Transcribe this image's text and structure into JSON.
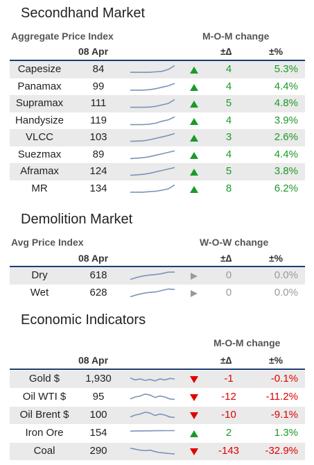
{
  "colors": {
    "up": "#1a9a2a",
    "down": "#e00000",
    "neutral": "#9a9a9a",
    "rule": "#1f3b70",
    "spark": "#7a94b8"
  },
  "secondhand": {
    "title": "Secondhand Market",
    "index_label": "Aggregate Price Index",
    "change_label": "M-O-M change",
    "date": "08 Apr",
    "delta_label": "±∆",
    "pct_label": "±%",
    "rows": [
      {
        "name": "Capesize",
        "value": "84",
        "dir": "up",
        "delta": "4",
        "pct": "5.3%",
        "spark": [
          0.2,
          0.2,
          0.2,
          0.2,
          0.25,
          0.3,
          0.5,
          0.9
        ]
      },
      {
        "name": "Panamax",
        "value": "99",
        "dir": "up",
        "delta": "4",
        "pct": "4.4%",
        "spark": [
          0.15,
          0.15,
          0.15,
          0.2,
          0.3,
          0.45,
          0.6,
          0.85
        ]
      },
      {
        "name": "Supramax",
        "value": "111",
        "dir": "up",
        "delta": "5",
        "pct": "4.8%",
        "spark": [
          0.1,
          0.1,
          0.1,
          0.12,
          0.2,
          0.35,
          0.5,
          0.9
        ]
      },
      {
        "name": "Handysize",
        "value": "119",
        "dir": "up",
        "delta": "4",
        "pct": "3.9%",
        "spark": [
          0.1,
          0.1,
          0.1,
          0.15,
          0.25,
          0.45,
          0.6,
          0.9
        ]
      },
      {
        "name": "VLCC",
        "value": "103",
        "dir": "up",
        "delta": "3",
        "pct": "2.6%",
        "spark": [
          0.1,
          0.12,
          0.15,
          0.25,
          0.4,
          0.55,
          0.7,
          0.9
        ]
      },
      {
        "name": "Suezmax",
        "value": "89",
        "dir": "up",
        "delta": "4",
        "pct": "4.4%",
        "spark": [
          0.1,
          0.15,
          0.2,
          0.3,
          0.45,
          0.6,
          0.75,
          0.9
        ]
      },
      {
        "name": "Aframax",
        "value": "124",
        "dir": "up",
        "delta": "5",
        "pct": "3.8%",
        "spark": [
          0.1,
          0.15,
          0.2,
          0.3,
          0.45,
          0.6,
          0.75,
          0.9
        ]
      },
      {
        "name": "MR",
        "value": "134",
        "dir": "up",
        "delta": "8",
        "pct": "6.2%",
        "spark": [
          0.15,
          0.15,
          0.15,
          0.2,
          0.25,
          0.35,
          0.5,
          0.9
        ]
      }
    ]
  },
  "demolition": {
    "title": "Demolition Market",
    "index_label": "Avg Price Index",
    "change_label": "W-O-W change",
    "date": "08 Apr",
    "delta_label": "±∆",
    "pct_label": "±%",
    "rows": [
      {
        "name": "Dry",
        "value": "618",
        "dir": "nc",
        "delta": "0",
        "pct": "0.0%",
        "spark": [
          0.1,
          0.3,
          0.45,
          0.55,
          0.6,
          0.7,
          0.85,
          0.85
        ]
      },
      {
        "name": "Wet",
        "value": "628",
        "dir": "nc",
        "delta": "0",
        "pct": "0.0%",
        "spark": [
          0.1,
          0.3,
          0.45,
          0.55,
          0.6,
          0.75,
          0.9,
          0.85
        ]
      }
    ]
  },
  "economic": {
    "title": "Economic Indicators",
    "change_label": "M-O-M change",
    "date": "08 Apr",
    "delta_label": "±∆",
    "pct_label": "±%",
    "rows": [
      {
        "name": "Gold $",
        "value": "1,930",
        "dir": "down",
        "delta": "-1",
        "pct": "-0.1%",
        "spark": [
          0.6,
          0.4,
          0.5,
          0.35,
          0.45,
          0.3,
          0.5,
          0.4,
          0.55,
          0.5
        ]
      },
      {
        "name": "Oil WTI $",
        "value": "95",
        "dir": "down",
        "delta": "-12",
        "pct": "-11.2%",
        "spark": [
          0.3,
          0.5,
          0.6,
          0.8,
          0.7,
          0.45,
          0.6,
          0.5,
          0.3,
          0.25
        ]
      },
      {
        "name": "Oil Brent $",
        "value": "100",
        "dir": "down",
        "delta": "-10",
        "pct": "-9.1%",
        "spark": [
          0.3,
          0.5,
          0.6,
          0.8,
          0.7,
          0.45,
          0.6,
          0.5,
          0.3,
          0.25
        ]
      },
      {
        "name": "Iron Ore",
        "value": "154",
        "dir": "up",
        "delta": "2",
        "pct": "1.3%",
        "spark": [
          0.7,
          0.72,
          0.72,
          0.73,
          0.73,
          0.74,
          0.74,
          0.75,
          0.75,
          0.75
        ]
      },
      {
        "name": "Coal",
        "value": "290",
        "dir": "down",
        "delta": "-143",
        "pct": "-32.9%",
        "spark": [
          0.8,
          0.7,
          0.6,
          0.55,
          0.6,
          0.45,
          0.35,
          0.3,
          0.25,
          0.2
        ]
      }
    ]
  }
}
